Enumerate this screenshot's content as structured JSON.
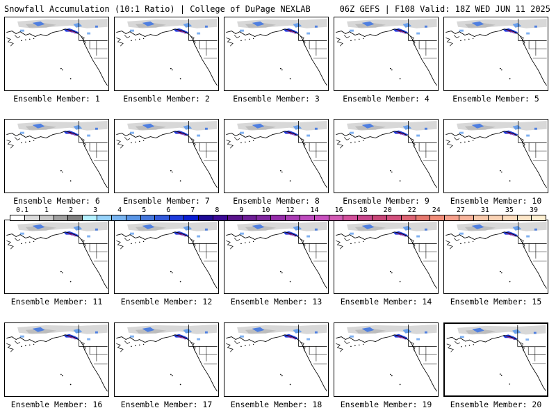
{
  "header": {
    "title_left": "Snowfall Accumulation (10:1 Ratio) | College of DuPage NEXLAB",
    "title_right": "06Z GEFS | F108 Valid: 18Z WED JUN 11 2025"
  },
  "members": [
    {
      "label": "Ensemble Member: 1"
    },
    {
      "label": "Ensemble Member: 2"
    },
    {
      "label": "Ensemble Member: 3"
    },
    {
      "label": "Ensemble Member: 4"
    },
    {
      "label": "Ensemble Member: 5"
    },
    {
      "label": "Ensemble Member: 6"
    },
    {
      "label": "Ensemble Member: 7"
    },
    {
      "label": "Ensemble Member: 8"
    },
    {
      "label": "Ensemble Member: 9"
    },
    {
      "label": "Ensemble Member: 10"
    },
    {
      "label": "Ensemble Member: 11"
    },
    {
      "label": "Ensemble Member: 12"
    },
    {
      "label": "Ensemble Member: 13"
    },
    {
      "label": "Ensemble Member: 14"
    },
    {
      "label": "Ensemble Member: 15"
    },
    {
      "label": "Ensemble Member: 16"
    },
    {
      "label": "Ensemble Member: 17"
    },
    {
      "label": "Ensemble Member: 18"
    },
    {
      "label": "Ensemble Member: 19"
    },
    {
      "label": "Ensemble Member: 20"
    }
  ],
  "colorbar": {
    "labels": [
      "0.1",
      "1",
      "2",
      "3",
      "4",
      "5",
      "6",
      "7",
      "8",
      "9",
      "10",
      "12",
      "14",
      "16",
      "18",
      "20",
      "22",
      "24",
      "27",
      "31",
      "35",
      "39"
    ],
    "colors": [
      "#ffffff",
      "#dcdcdc",
      "#c8c8c8",
      "#a0a0a0",
      "#808080",
      "#b4f0ff",
      "#96d2fa",
      "#78b4f0",
      "#5a96e6",
      "#4678dc",
      "#325adc",
      "#1e3cdc",
      "#0a1ed2",
      "#1e0a96",
      "#3c0a96",
      "#5a148c",
      "#6e1e96",
      "#8228a0",
      "#962daa",
      "#aa3cb4",
      "#be4bbe",
      "#c850be",
      "#d25ab4",
      "#d2509b",
      "#c8468c",
      "#c84678",
      "#d2507d",
      "#dc6473",
      "#e6786e",
      "#f08c78",
      "#f5a08c",
      "#f7b49b",
      "#f8c8aa",
      "#fad2b4",
      "#fcdcbe",
      "#fde6c8",
      "#fef0d2"
    ]
  },
  "legend_map": {
    "land": "#ffffff",
    "border": "#000000",
    "snow_light": "#c8c8c8",
    "snow_blue": "#325adc",
    "snow_heavy": "#8228a0"
  }
}
